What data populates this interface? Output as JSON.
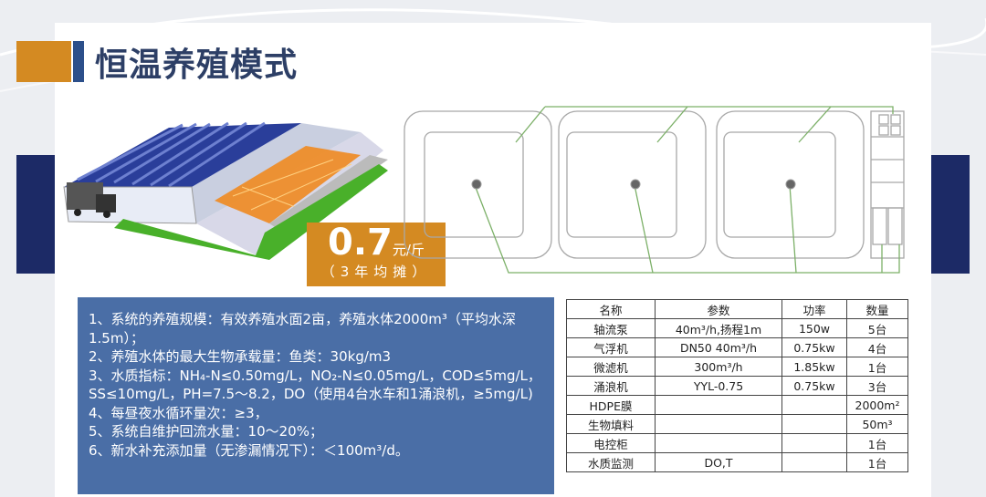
{
  "slide": {
    "title": "恒温养殖模式",
    "colors": {
      "accent_orange": "#d48a22",
      "accent_blue": "#2c4f8a",
      "navy": "#1c2a66",
      "info_box": "#4a6ea6"
    },
    "price": {
      "value": "0.7",
      "unit": "元/斤",
      "note": "（3年均摊）"
    },
    "info_lines": [
      "1、系统的养殖规模：有效养殖水面2亩，养殖水体2000m³（平均水深1.5m）；",
      "2、养殖水体的最大生物承载量：鱼类：30kg/m3",
      "3、水质指标：NH₄-N≤0.50mg/L，NO₂-N≤0.05mg/L，COD≤5mg/L，SS≤10mg/L，PH=7.5～8.2，DO（使用4台水车和1涌浪机，≥5mg/L)",
      "4、每昼夜水循环量次：≥3，",
      "5、系统自维护回流水量：10～20%；",
      "6、新水补充添加量（无渗漏情况下）：＜100m³/d。"
    ],
    "table": {
      "headers": [
        "名称",
        "参数",
        "功率",
        "数量"
      ],
      "rows": [
        [
          "轴流泵",
          "40m³/h,扬程1m",
          "150w",
          "5台"
        ],
        [
          "气浮机",
          "DN50  40m³/h",
          "0.75kw",
          "4台"
        ],
        [
          "微滤机",
          "300m³/h",
          "1.85kw",
          "1台"
        ],
        [
          "涌浪机",
          "YYL-0.75",
          "0.75kw",
          "3台"
        ],
        [
          "HDPE膜",
          "",
          "",
          "2000m²"
        ],
        [
          "生物填料",
          "",
          "",
          "50m³"
        ],
        [
          "电控柜",
          "",
          "",
          "1台"
        ],
        [
          "水质监测",
          "DO,T",
          "",
          "1台"
        ]
      ]
    }
  }
}
